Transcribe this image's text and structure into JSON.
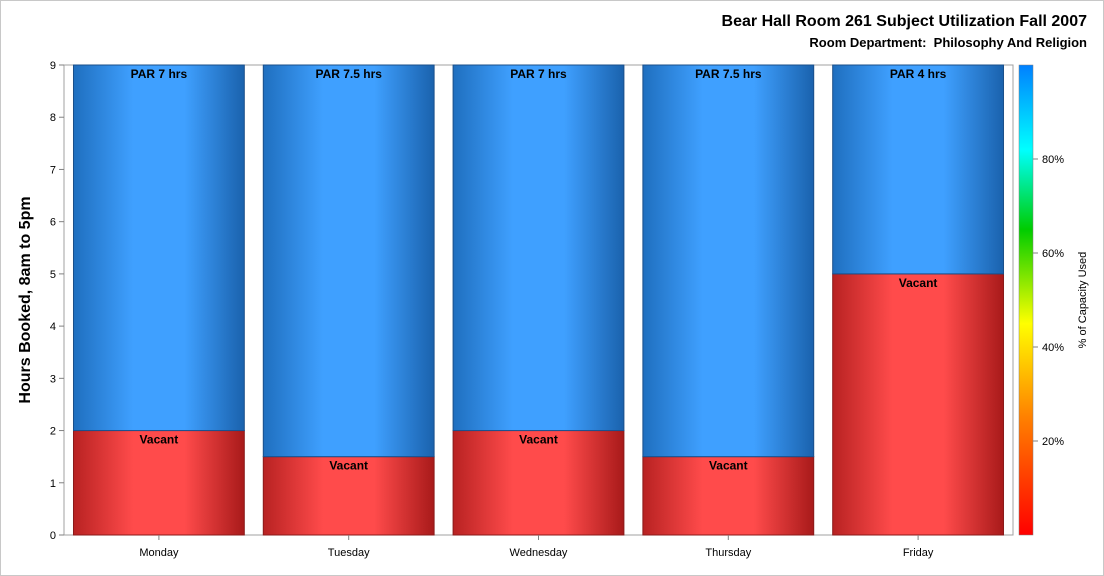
{
  "chart_data": {
    "type": "bar",
    "stacked": true,
    "title": "Bear Hall Room 261 Subject Utilization Fall 2007",
    "subtitle": "Room Department:  Philosophy And Religion",
    "xlabel": "",
    "ylabel": "Hours Booked, 8am to 5pm",
    "ylim": [
      0,
      9
    ],
    "yticks": [
      0,
      1,
      2,
      3,
      4,
      5,
      6,
      7,
      8,
      9
    ],
    "categories": [
      "Monday",
      "Tuesday",
      "Wednesday",
      "Thursday",
      "Friday"
    ],
    "series": [
      {
        "name": "Vacant",
        "values": [
          2,
          1.5,
          2,
          1.5,
          5
        ],
        "labels": [
          "Vacant",
          "Vacant",
          "Vacant",
          "Vacant",
          "Vacant"
        ],
        "color": "#ff4444"
      },
      {
        "name": "PAR",
        "values": [
          7,
          7.5,
          7,
          7.5,
          4
        ],
        "labels": [
          "PAR 7 hrs",
          "PAR 7.5 hrs",
          "PAR 7 hrs",
          "PAR 7.5 hrs",
          "PAR 4 hrs"
        ],
        "color": "#3fa0ff"
      }
    ],
    "colorbar": {
      "label": "% of Capacity Used",
      "ticks": [
        "20%",
        "40%",
        "60%",
        "80%"
      ],
      "tick_values": [
        20,
        40,
        60,
        80
      ],
      "range": [
        0,
        100
      ],
      "colors": [
        "#ff0000",
        "#ff8000",
        "#ffff00",
        "#00cc00",
        "#00ffff",
        "#0080ff"
      ]
    },
    "grid": false
  }
}
